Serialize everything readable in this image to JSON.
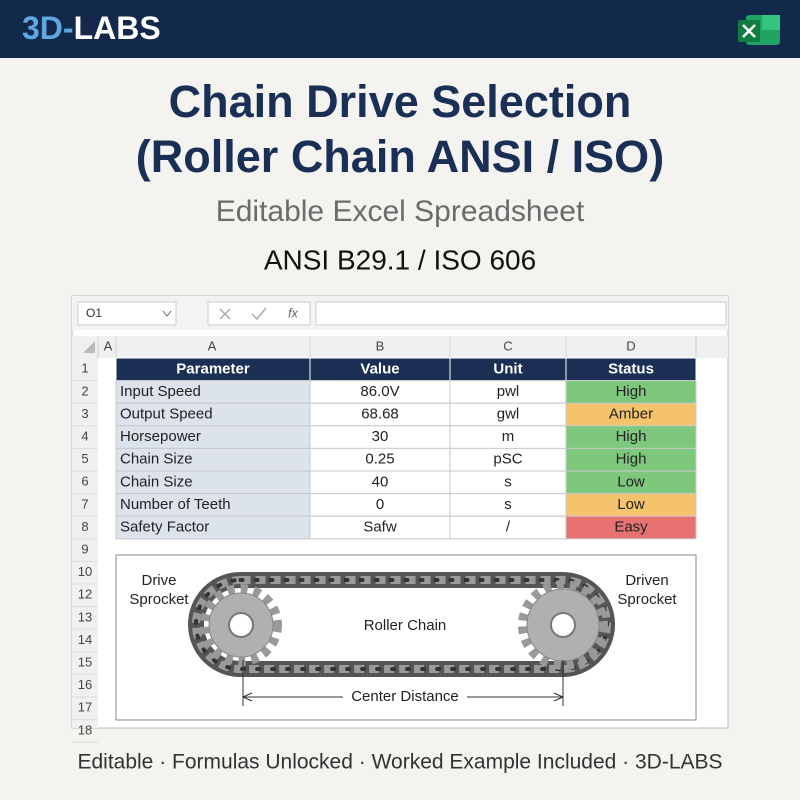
{
  "header": {
    "brand": [
      "3D-",
      "LABS"
    ]
  },
  "title": [
    "Chain Drive Selection",
    "(Roller Chain ANSI / ISO)"
  ],
  "subtitle": "Editable Excel Spreadsheet",
  "standard": "ANSI B29.1 / ISO 606",
  "spreadsheet": {
    "name_box": "O1",
    "fx": "fx",
    "column_headers": [
      "A",
      "A",
      "B",
      "C",
      "D"
    ],
    "row_numbers": [
      "1",
      "2",
      "3",
      "4",
      "5",
      "6",
      "7",
      "8",
      "9",
      "10",
      "12",
      "13",
      "14",
      "15",
      "16",
      "17",
      "18"
    ],
    "table": {
      "header": [
        "Parameter",
        "Value",
        "Unit",
        "Status"
      ],
      "rows": [
        [
          "Input Speed",
          "86.0V",
          "pwl",
          "High"
        ],
        [
          "Output Speed",
          "68.68",
          "gwl",
          "Amber"
        ],
        [
          "Horsepower",
          "30",
          "m",
          "High"
        ],
        [
          "Chain Size",
          "0.25",
          "pSC",
          "High"
        ],
        [
          "Chain Size",
          "40",
          "s",
          "Low"
        ],
        [
          "Number of Teeth",
          "0",
          "s",
          "Low"
        ],
        [
          "Safety Factor",
          "Safw",
          "/",
          "Easy"
        ]
      ],
      "status_colors": [
        "#7ec87e",
        "#f5c36b",
        "#7ec87e",
        "#7ec87e",
        "#7ec87e",
        "#f5c36b",
        "#e87272"
      ]
    },
    "diagram": {
      "drive_label": [
        "Drive",
        "Sprocket"
      ],
      "driven_label": [
        "Driven",
        "Sprocket"
      ],
      "chain_label": "Roller Chain",
      "distance_label": "Center Distance"
    }
  },
  "footer": "Editable · Formulas Unlocked · Worked Example Included · 3D-LABS"
}
